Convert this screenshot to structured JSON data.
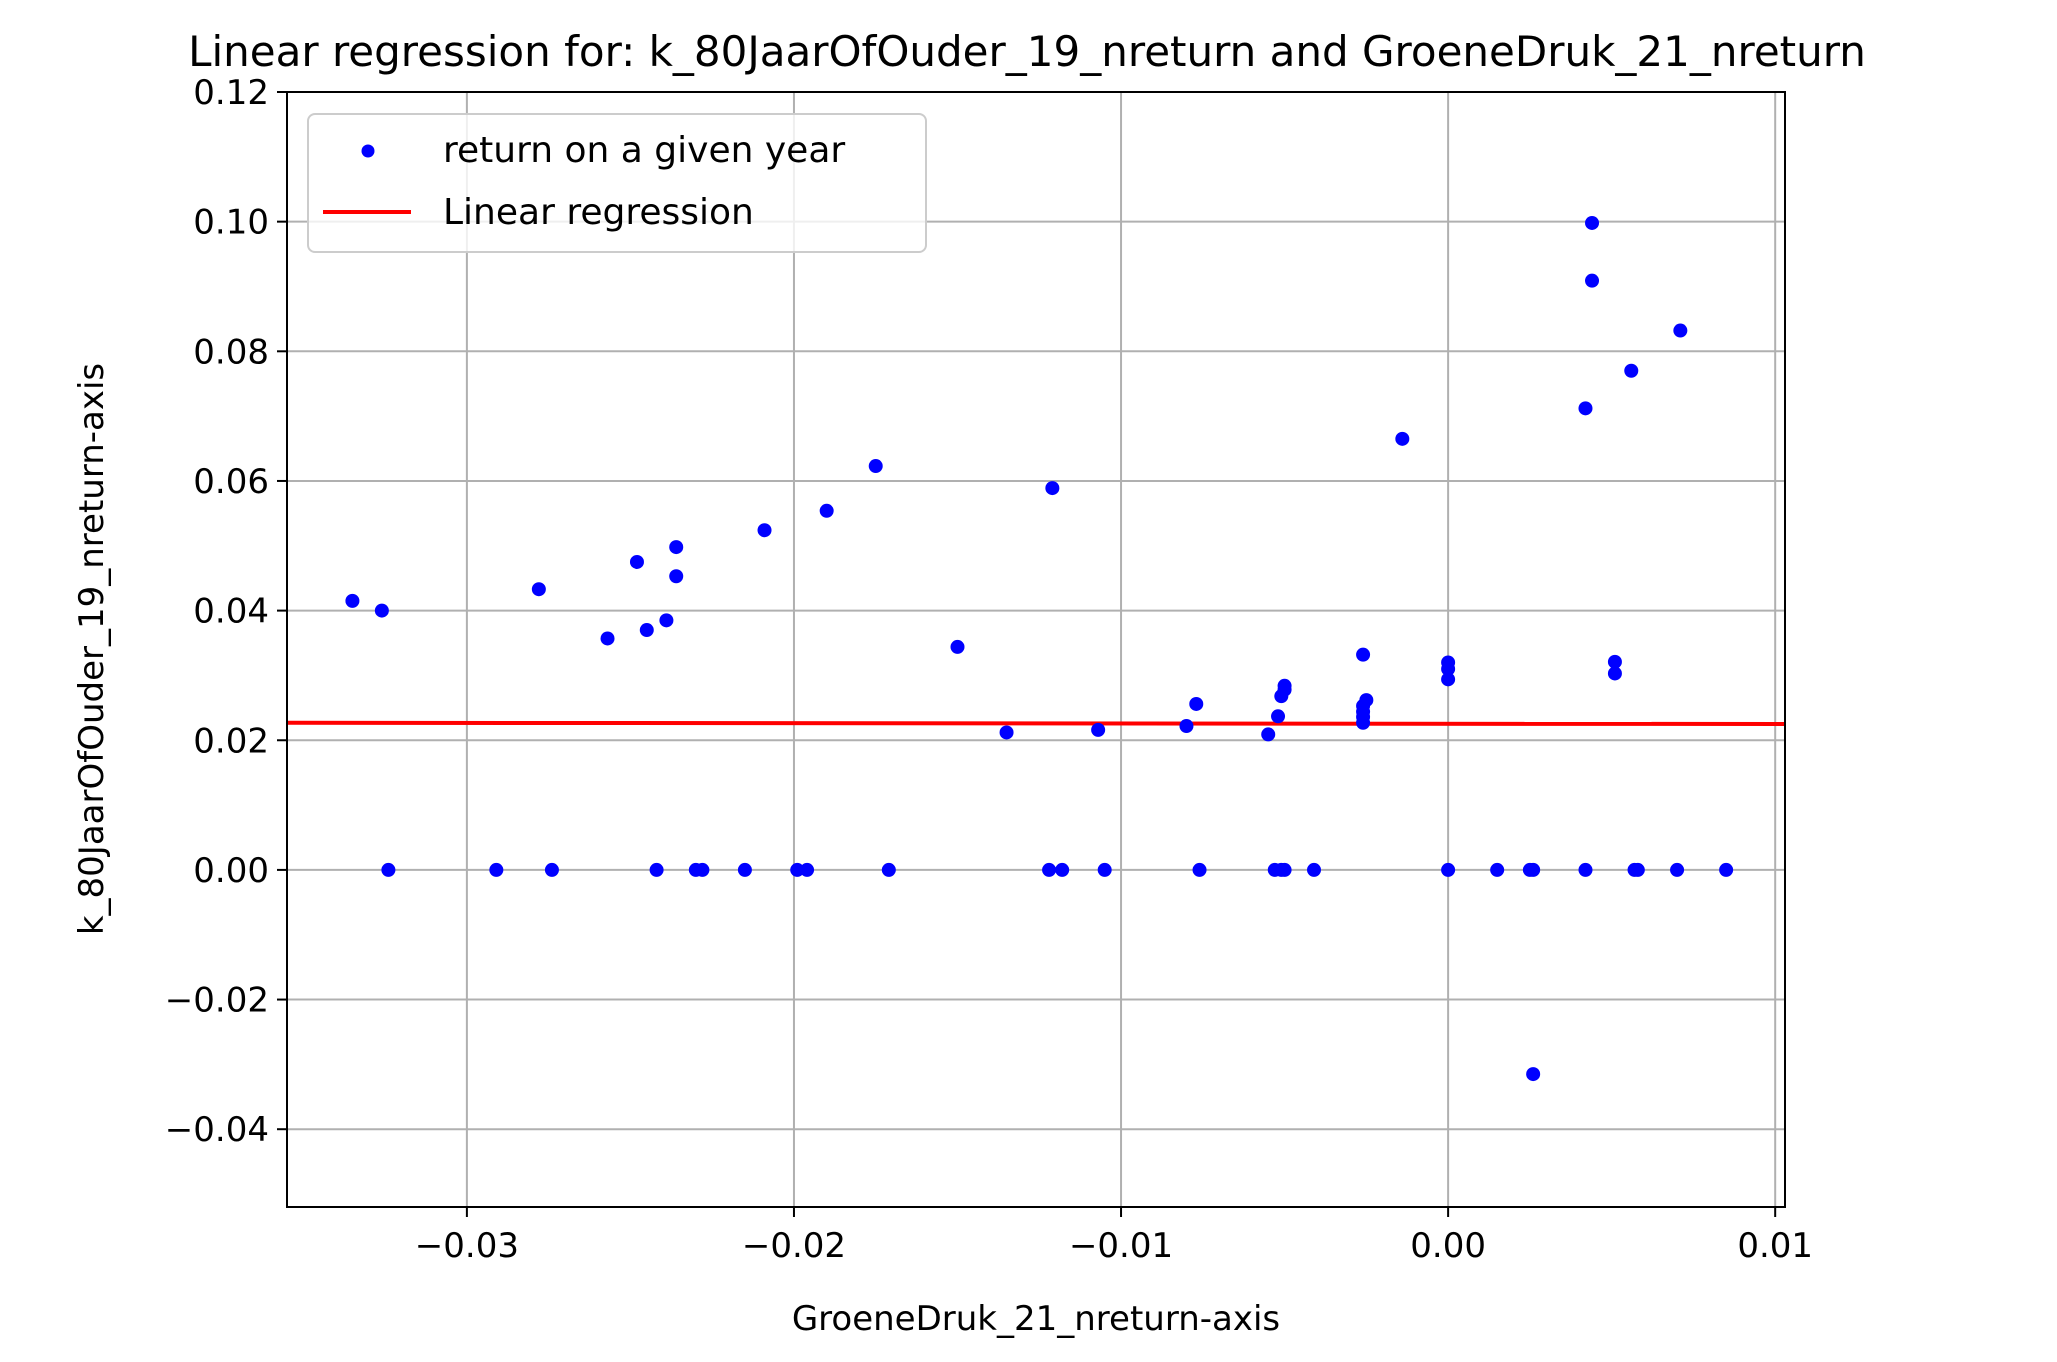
{
  "chart_data": {
    "type": "scatter",
    "title": "Linear regression for: k_80JaarOfOuder_19_nreturn and GroeneDruk_21_nreturn",
    "xlabel": "GroeneDruk_21_nreturn-axis",
    "ylabel": "k_80JaarOfOuder_19_nreturn-axis",
    "xlim": [
      -0.0355,
      0.0103
    ],
    "ylim": [
      -0.052,
      0.12
    ],
    "xticks": [
      -0.03,
      -0.02,
      -0.01,
      0.0,
      0.01
    ],
    "xtick_labels": [
      "−0.03",
      "−0.02",
      "−0.01",
      "0.00",
      "0.01"
    ],
    "yticks": [
      -0.04,
      -0.02,
      0.0,
      0.02,
      0.04,
      0.06,
      0.08,
      0.1,
      0.12
    ],
    "ytick_labels": [
      "−0.04",
      "−0.02",
      "0.00",
      "0.02",
      "0.04",
      "0.06",
      "0.08",
      "0.10",
      "0.12"
    ],
    "grid": true,
    "legend_position": "top-left",
    "series": [
      {
        "name": "return on a given year",
        "kind": "scatter",
        "color": "#0000ff",
        "points": [
          [
            -0.0335,
            0.0415
          ],
          [
            -0.0326,
            0.04
          ],
          [
            -0.0324,
            0.0
          ],
          [
            -0.0291,
            0.0
          ],
          [
            -0.0278,
            0.0433
          ],
          [
            -0.0274,
            0.0
          ],
          [
            -0.0257,
            0.0357
          ],
          [
            -0.0248,
            0.0475
          ],
          [
            -0.0245,
            0.037
          ],
          [
            -0.0242,
            0.0
          ],
          [
            -0.0239,
            0.0385
          ],
          [
            -0.0236,
            0.0498
          ],
          [
            -0.0236,
            0.0453
          ],
          [
            -0.023,
            0.0
          ],
          [
            -0.0228,
            0.0
          ],
          [
            -0.0215,
            0.0
          ],
          [
            -0.0209,
            0.0524
          ],
          [
            -0.0199,
            0.0
          ],
          [
            -0.0196,
            0.0
          ],
          [
            -0.019,
            0.0554
          ],
          [
            -0.0175,
            0.0623
          ],
          [
            -0.0171,
            0.0
          ],
          [
            -0.015,
            0.0344
          ],
          [
            -0.0135,
            0.0212
          ],
          [
            -0.0122,
            0.0
          ],
          [
            -0.0121,
            0.0589
          ],
          [
            -0.0118,
            0.0
          ],
          [
            -0.0107,
            0.0216
          ],
          [
            -0.0105,
            0.0
          ],
          [
            -0.008,
            0.0222
          ],
          [
            -0.0077,
            0.0256
          ],
          [
            -0.0076,
            0.0
          ],
          [
            -0.0055,
            0.0209
          ],
          [
            -0.0053,
            0.0
          ],
          [
            -0.0052,
            0.0237
          ],
          [
            -0.0051,
            0.0
          ],
          [
            -0.0051,
            0.0268
          ],
          [
            -0.005,
            0.0278
          ],
          [
            -0.005,
            0.0284
          ],
          [
            -0.005,
            0.0
          ],
          [
            -0.0041,
            0.0
          ],
          [
            -0.0026,
            0.0227
          ],
          [
            -0.0026,
            0.0236
          ],
          [
            -0.0026,
            0.0244
          ],
          [
            -0.0026,
            0.0253
          ],
          [
            -0.0025,
            0.0262
          ],
          [
            -0.0026,
            0.0332
          ],
          [
            -0.0014,
            0.0665
          ],
          [
            0.0,
            0.0
          ],
          [
            0.0,
            0.0294
          ],
          [
            0.0,
            0.031
          ],
          [
            0.0,
            0.032
          ],
          [
            0.0015,
            0.0
          ],
          [
            0.0025,
            0.0
          ],
          [
            0.0026,
            0.0
          ],
          [
            0.0026,
            -0.0315
          ],
          [
            0.0042,
            0.0712
          ],
          [
            0.0042,
            0.0
          ],
          [
            0.0044,
            0.0909
          ],
          [
            0.0044,
            0.0998
          ],
          [
            0.0051,
            0.0303
          ],
          [
            0.0051,
            0.0321
          ],
          [
            0.0056,
            0.077
          ],
          [
            0.0057,
            0.0
          ],
          [
            0.0058,
            0.0
          ],
          [
            0.007,
            0.0
          ],
          [
            0.0071,
            0.0832
          ],
          [
            0.0085,
            0.0
          ]
        ]
      },
      {
        "name": "Linear regression",
        "kind": "line",
        "color": "#ff0000",
        "points": [
          [
            -0.0355,
            0.0227
          ],
          [
            0.0103,
            0.0225
          ]
        ]
      }
    ]
  }
}
